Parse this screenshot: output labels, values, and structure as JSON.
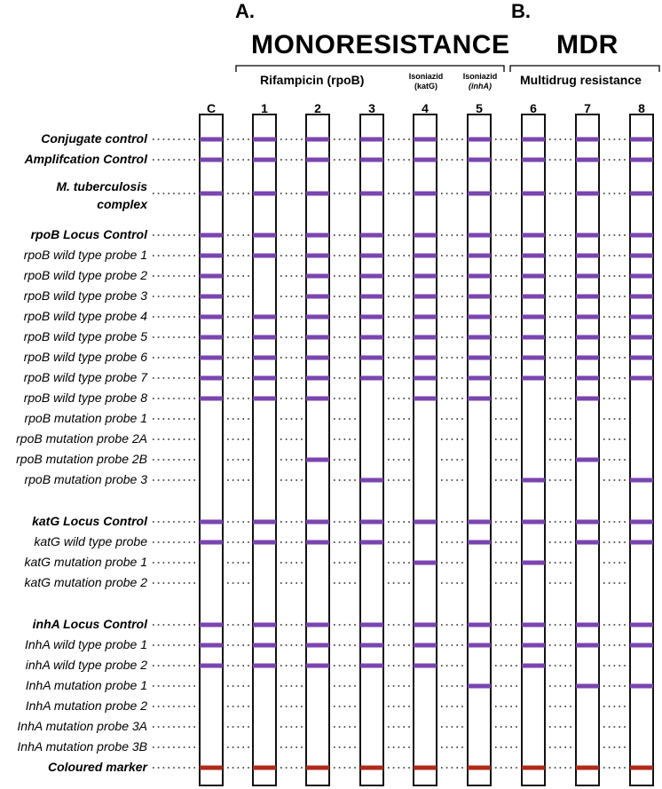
{
  "section_a": {
    "letter": "A.",
    "title": "MONORESISTANCE"
  },
  "section_b": {
    "letter": "B.",
    "title": "MDR"
  },
  "groups": {
    "rifampicin": "Rifampicin (rpoB)",
    "isoniazid_katg_1": "Isoniazid",
    "isoniazid_katg_2": "(katG)",
    "isoniazid_inha_1": "Isoniazid",
    "isoniazid_inha_2": "(inhA)",
    "mdr": "Multidrug resistance"
  },
  "columns": [
    "C",
    "1",
    "2",
    "3",
    "4",
    "5",
    "6",
    "7",
    "8"
  ],
  "rows": [
    {
      "label": "Conjugate control",
      "bold": true,
      "bands": [
        1,
        1,
        1,
        1,
        1,
        1,
        1,
        1,
        1
      ]
    },
    {
      "label": "Amplifcation Control",
      "bold": true,
      "bands": [
        1,
        1,
        1,
        1,
        1,
        1,
        1,
        1,
        1
      ]
    },
    {
      "label": "M. tuberculosis",
      "label2": "complex",
      "bold": true,
      "bands": [
        1,
        1,
        1,
        1,
        1,
        1,
        1,
        1,
        1
      ]
    },
    {
      "label": "rpoB Locus Control",
      "bold": true,
      "bands": [
        1,
        1,
        1,
        1,
        1,
        1,
        1,
        1,
        1
      ]
    },
    {
      "label": "rpoB wild type probe 1",
      "bold": false,
      "bands": [
        1,
        1,
        1,
        1,
        1,
        1,
        1,
        1,
        1
      ]
    },
    {
      "label": "rpoB wild type probe 2",
      "bold": false,
      "bands": [
        1,
        0,
        1,
        1,
        1,
        1,
        1,
        1,
        1
      ]
    },
    {
      "label": "rpoB wild type probe 3",
      "bold": false,
      "bands": [
        1,
        0,
        1,
        1,
        1,
        1,
        1,
        1,
        1
      ]
    },
    {
      "label": "rpoB wild type probe 4",
      "bold": false,
      "bands": [
        1,
        1,
        1,
        1,
        1,
        1,
        1,
        1,
        1
      ]
    },
    {
      "label": "rpoB wild type probe 5",
      "bold": false,
      "bands": [
        1,
        1,
        1,
        1,
        1,
        1,
        1,
        1,
        1
      ]
    },
    {
      "label": "rpoB wild type probe 6",
      "bold": false,
      "bands": [
        1,
        1,
        1,
        1,
        1,
        1,
        1,
        1,
        1
      ]
    },
    {
      "label": "rpoB wild type probe 7",
      "bold": false,
      "bands": [
        1,
        1,
        1,
        1,
        1,
        1,
        1,
        1,
        1
      ]
    },
    {
      "label": "rpoB wild type probe 8",
      "bold": false,
      "bands": [
        1,
        1,
        1,
        0,
        1,
        1,
        0,
        1,
        0
      ]
    },
    {
      "label": "rpoB mutation probe 1",
      "bold": false,
      "bands": [
        0,
        0,
        0,
        0,
        0,
        0,
        0,
        0,
        0
      ]
    },
    {
      "label": "rpoB mutation probe 2A",
      "bold": false,
      "bands": [
        0,
        0,
        0,
        0,
        0,
        0,
        0,
        0,
        0
      ]
    },
    {
      "label": "rpoB mutation probe 2B",
      "bold": false,
      "bands": [
        0,
        0,
        1,
        0,
        0,
        0,
        0,
        1,
        0
      ]
    },
    {
      "label": "rpoB mutation probe 3",
      "bold": false,
      "bands": [
        0,
        0,
        0,
        1,
        0,
        0,
        1,
        0,
        1
      ]
    },
    {
      "label": "katG Locus Control",
      "bold": true,
      "bands": [
        1,
        1,
        1,
        1,
        1,
        1,
        1,
        1,
        1
      ]
    },
    {
      "label": "katG wild type probe",
      "bold": false,
      "bands": [
        1,
        1,
        1,
        1,
        0,
        1,
        0,
        1,
        1
      ]
    },
    {
      "label": "katG mutation probe 1",
      "bold": false,
      "bands": [
        0,
        0,
        0,
        0,
        1,
        0,
        1,
        0,
        0
      ]
    },
    {
      "label": "katG mutation probe 2",
      "bold": false,
      "bands": [
        0,
        0,
        0,
        0,
        0,
        0,
        0,
        0,
        0
      ]
    },
    {
      "label": "inhA Locus Control",
      "bold": true,
      "bands": [
        1,
        1,
        1,
        1,
        1,
        1,
        1,
        1,
        1
      ]
    },
    {
      "label": "InhA wild type probe 1",
      "bold": false,
      "bands": [
        1,
        1,
        1,
        1,
        1,
        1,
        1,
        1,
        1
      ]
    },
    {
      "label": "inhA wild type probe 2",
      "bold": false,
      "bands": [
        1,
        1,
        1,
        1,
        1,
        0,
        1,
        0,
        0
      ]
    },
    {
      "label": "InhA mutation probe 1",
      "bold": false,
      "bands": [
        0,
        0,
        0,
        0,
        0,
        1,
        0,
        1,
        1
      ]
    },
    {
      "label": "InhA mutation probe 2",
      "bold": false,
      "bands": [
        0,
        0,
        0,
        0,
        0,
        0,
        0,
        0,
        0
      ]
    },
    {
      "label": "InhA mutation probe 3A",
      "bold": false,
      "bands": [
        0,
        0,
        0,
        0,
        0,
        0,
        0,
        0,
        0
      ]
    },
    {
      "label": "InhA mutation probe 3B",
      "bold": false,
      "bands": [
        0,
        0,
        0,
        0,
        0,
        0,
        0,
        0,
        0
      ]
    },
    {
      "label": "Coloured marker",
      "bold": true,
      "marker": true,
      "bands": [
        1,
        1,
        1,
        1,
        1,
        1,
        1,
        1,
        1
      ]
    }
  ],
  "colors": {
    "band": "#7a45b0",
    "marker": "#b02a1a",
    "strip_border": "#111111"
  }
}
